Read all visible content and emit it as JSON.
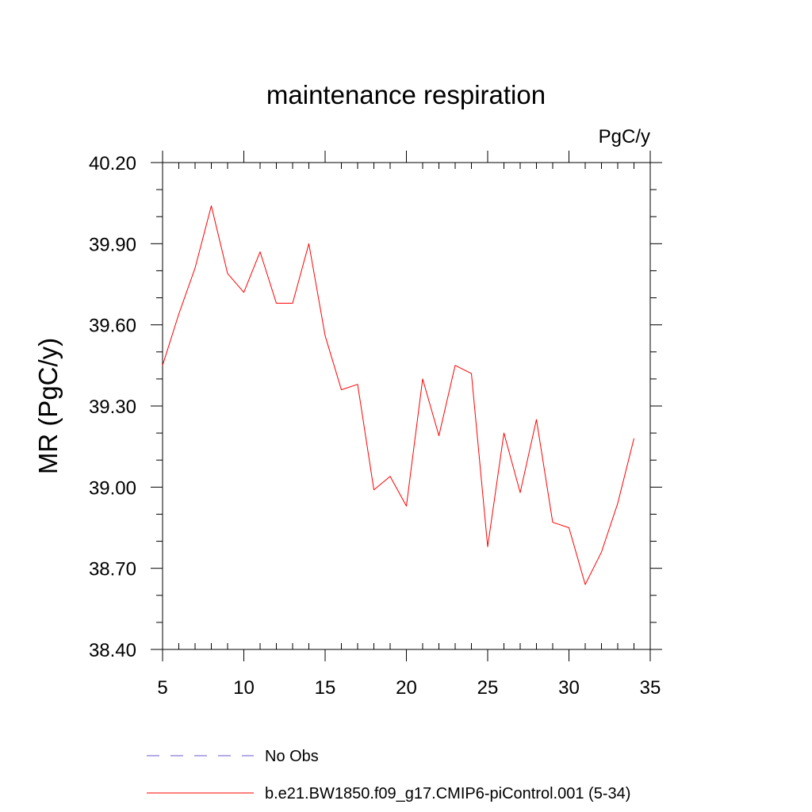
{
  "chart_data": {
    "type": "line",
    "title": "maintenance respiration",
    "units_label": "PgC/y",
    "xlabel": "",
    "ylabel": "MR  (PgC/y)",
    "xlim": [
      5,
      35
    ],
    "ylim": [
      38.4,
      40.2
    ],
    "xticks": [
      5,
      10,
      15,
      20,
      25,
      30,
      35
    ],
    "xtick_labels": [
      "5",
      "10",
      "15",
      "20",
      "25",
      "30",
      "35"
    ],
    "yticks": [
      38.4,
      38.7,
      39.0,
      39.3,
      39.6,
      39.9,
      40.2
    ],
    "ytick_labels": [
      "38.40",
      "38.70",
      "39.00",
      "39.30",
      "39.60",
      "39.90",
      "40.20"
    ],
    "grid": false,
    "legend_position": "bottom",
    "series": [
      {
        "name": "b.e21.BW1850.f09_g17.CMIP6-piControl.001 (5-34)",
        "color": "#ff0000",
        "style": "solid",
        "x": [
          5,
          6,
          7,
          8,
          9,
          10,
          11,
          12,
          13,
          14,
          15,
          16,
          17,
          18,
          19,
          20,
          21,
          22,
          23,
          24,
          25,
          26,
          27,
          28,
          29,
          30,
          31,
          32,
          33,
          34
        ],
        "values": [
          39.45,
          39.64,
          39.81,
          40.04,
          39.79,
          39.72,
          39.87,
          39.68,
          39.68,
          39.9,
          39.56,
          39.36,
          39.38,
          38.99,
          39.04,
          38.93,
          39.4,
          39.19,
          39.45,
          39.42,
          38.78,
          39.2,
          38.98,
          39.25,
          38.87,
          38.85,
          38.64,
          38.76,
          38.94,
          39.18
        ]
      }
    ],
    "legend": [
      {
        "label": "No Obs",
        "color": "#6a5acd",
        "style": "dashed"
      },
      {
        "label": "b.e21.BW1850.f09_g17.CMIP6-piControl.001 (5-34)",
        "color": "#ff0000",
        "style": "solid"
      }
    ]
  }
}
